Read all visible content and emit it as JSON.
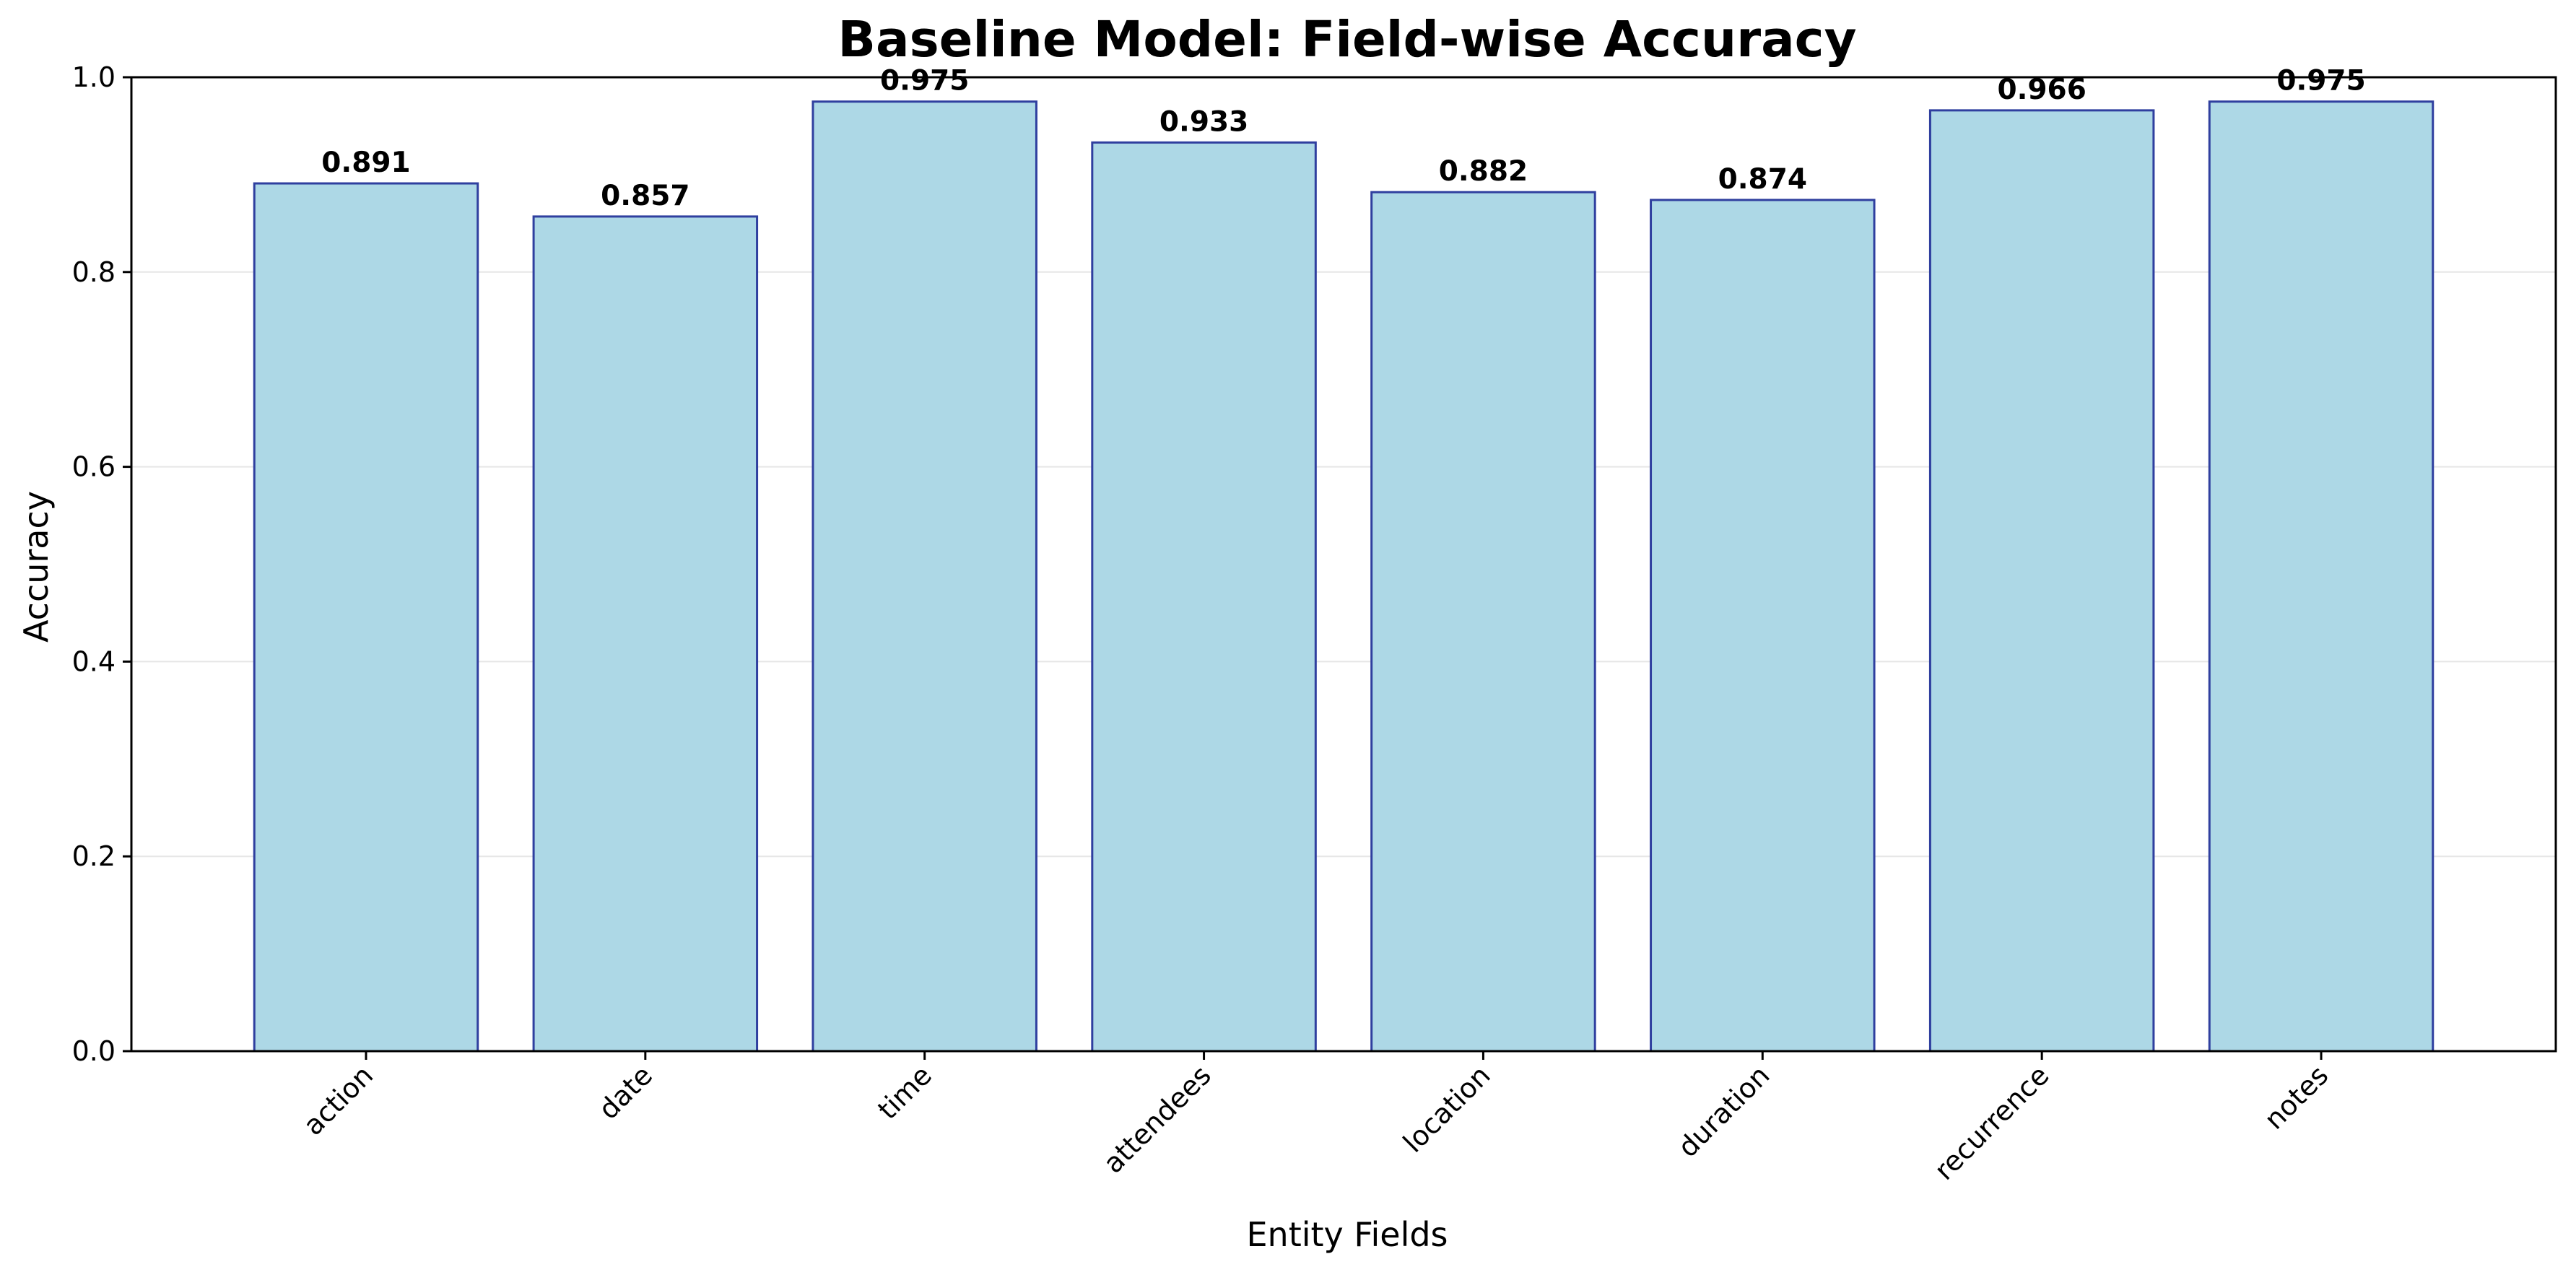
{
  "chart_data": {
    "type": "bar",
    "title": "Baseline Model: Field-wise Accuracy",
    "xlabel": "Entity Fields",
    "ylabel": "Accuracy",
    "categories": [
      "action",
      "date",
      "time",
      "attendees",
      "location",
      "duration",
      "recurrence",
      "notes"
    ],
    "values": [
      0.891,
      0.857,
      0.975,
      0.933,
      0.882,
      0.874,
      0.966,
      0.975
    ],
    "data_labels": [
      "0.891",
      "0.857",
      "0.975",
      "0.933",
      "0.882",
      "0.874",
      "0.966",
      "0.975"
    ],
    "ylim": [
      0.0,
      1.0
    ],
    "yticks": [
      0.0,
      0.2,
      0.4,
      0.6,
      0.8,
      1.0
    ],
    "ytick_labels": [
      "0.0",
      "0.2",
      "0.4",
      "0.6",
      "0.8",
      "1.0"
    ],
    "grid": "horizontal",
    "legend": "none",
    "colors": {
      "bar_fill": "#ADD8E6",
      "bar_edge": "#2F3F9F",
      "grid": "#E6E6E6",
      "axis": "#000000"
    }
  }
}
